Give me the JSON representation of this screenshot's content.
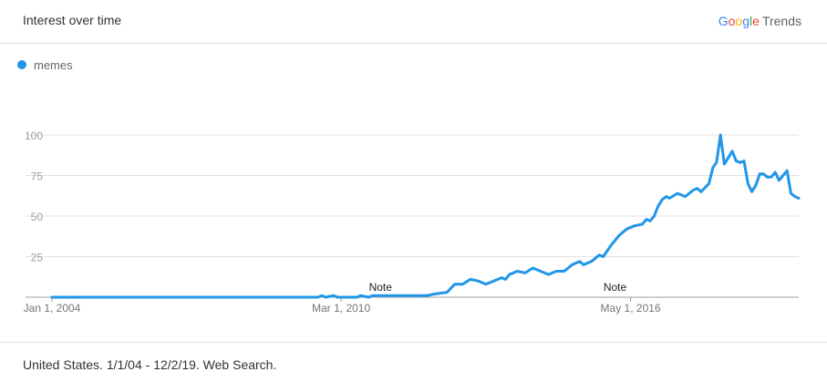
{
  "header": {
    "title": "Interest over time"
  },
  "brand": {
    "google_letters": [
      "G",
      "o",
      "o",
      "g",
      "l",
      "e"
    ],
    "product": "Trends"
  },
  "legend": {
    "label": "memes",
    "color": "#2196e8"
  },
  "footer": {
    "text": "United States. 1/1/04 - 12/2/19. Web Search."
  },
  "chart_data": {
    "type": "line",
    "title": "Interest over time",
    "xlabel": "",
    "ylabel": "",
    "ylim": [
      0,
      100
    ],
    "yticks": [
      25,
      50,
      75,
      100
    ],
    "xticks": [
      {
        "label": "Jan 1, 2004",
        "date": "2004-01-01"
      },
      {
        "label": "Mar 1, 2010",
        "date": "2010-03-01"
      },
      {
        "label": "May 1, 2016",
        "date": "2016-05-01"
      }
    ],
    "xrange": [
      "2004-01-01",
      "2019-12-01"
    ],
    "notes": [
      {
        "label": "Note",
        "date": "2011-01-01"
      },
      {
        "label": "Note",
        "date": "2016-01-01"
      }
    ],
    "grid": true,
    "series": [
      {
        "name": "memes",
        "color": "#2196e8",
        "points": [
          [
            "2004-01-01",
            0
          ],
          [
            "2009-09-01",
            0
          ],
          [
            "2009-10-01",
            1
          ],
          [
            "2009-11-01",
            0
          ],
          [
            "2010-01-01",
            1
          ],
          [
            "2010-02-01",
            0
          ],
          [
            "2010-07-01",
            0
          ],
          [
            "2010-08-01",
            1
          ],
          [
            "2010-10-01",
            0
          ],
          [
            "2010-11-01",
            1
          ],
          [
            "2011-04-01",
            1
          ],
          [
            "2012-01-01",
            1
          ],
          [
            "2012-03-01",
            2
          ],
          [
            "2012-06-01",
            3
          ],
          [
            "2012-08-01",
            8
          ],
          [
            "2012-10-01",
            8
          ],
          [
            "2012-12-01",
            11
          ],
          [
            "2013-02-01",
            10
          ],
          [
            "2013-04-01",
            8
          ],
          [
            "2013-06-01",
            10
          ],
          [
            "2013-08-01",
            12
          ],
          [
            "2013-09-01",
            11
          ],
          [
            "2013-10-01",
            14
          ],
          [
            "2013-12-01",
            16
          ],
          [
            "2014-02-01",
            15
          ],
          [
            "2014-04-01",
            18
          ],
          [
            "2014-06-01",
            16
          ],
          [
            "2014-08-01",
            14
          ],
          [
            "2014-10-01",
            16
          ],
          [
            "2014-12-01",
            16
          ],
          [
            "2015-02-01",
            20
          ],
          [
            "2015-04-01",
            22
          ],
          [
            "2015-05-01",
            20
          ],
          [
            "2015-07-01",
            22
          ],
          [
            "2015-09-01",
            26
          ],
          [
            "2015-10-01",
            25
          ],
          [
            "2015-12-01",
            32
          ],
          [
            "2016-02-01",
            38
          ],
          [
            "2016-04-01",
            42
          ],
          [
            "2016-06-01",
            44
          ],
          [
            "2016-08-01",
            45
          ],
          [
            "2016-09-01",
            48
          ],
          [
            "2016-10-01",
            47
          ],
          [
            "2016-11-01",
            50
          ],
          [
            "2016-12-01",
            56
          ],
          [
            "2017-01-01",
            60
          ],
          [
            "2017-02-01",
            62
          ],
          [
            "2017-03-01",
            61
          ],
          [
            "2017-05-01",
            64
          ],
          [
            "2017-07-01",
            62
          ],
          [
            "2017-09-01",
            66
          ],
          [
            "2017-10-01",
            67
          ],
          [
            "2017-11-01",
            65
          ],
          [
            "2018-01-01",
            70
          ],
          [
            "2018-02-01",
            80
          ],
          [
            "2018-03-01",
            83
          ],
          [
            "2018-04-01",
            100
          ],
          [
            "2018-05-01",
            82
          ],
          [
            "2018-06-01",
            86
          ],
          [
            "2018-07-01",
            90
          ],
          [
            "2018-08-01",
            84
          ],
          [
            "2018-09-01",
            83
          ],
          [
            "2018-10-01",
            84
          ],
          [
            "2018-11-01",
            70
          ],
          [
            "2018-12-01",
            65
          ],
          [
            "2019-01-01",
            69
          ],
          [
            "2019-02-01",
            76
          ],
          [
            "2019-03-01",
            76
          ],
          [
            "2019-04-01",
            74
          ],
          [
            "2019-05-01",
            74
          ],
          [
            "2019-06-01",
            77
          ],
          [
            "2019-07-01",
            72
          ],
          [
            "2019-08-01",
            75
          ],
          [
            "2019-09-01",
            78
          ],
          [
            "2019-10-01",
            64
          ],
          [
            "2019-11-01",
            62
          ],
          [
            "2019-12-01",
            61
          ]
        ]
      }
    ]
  }
}
